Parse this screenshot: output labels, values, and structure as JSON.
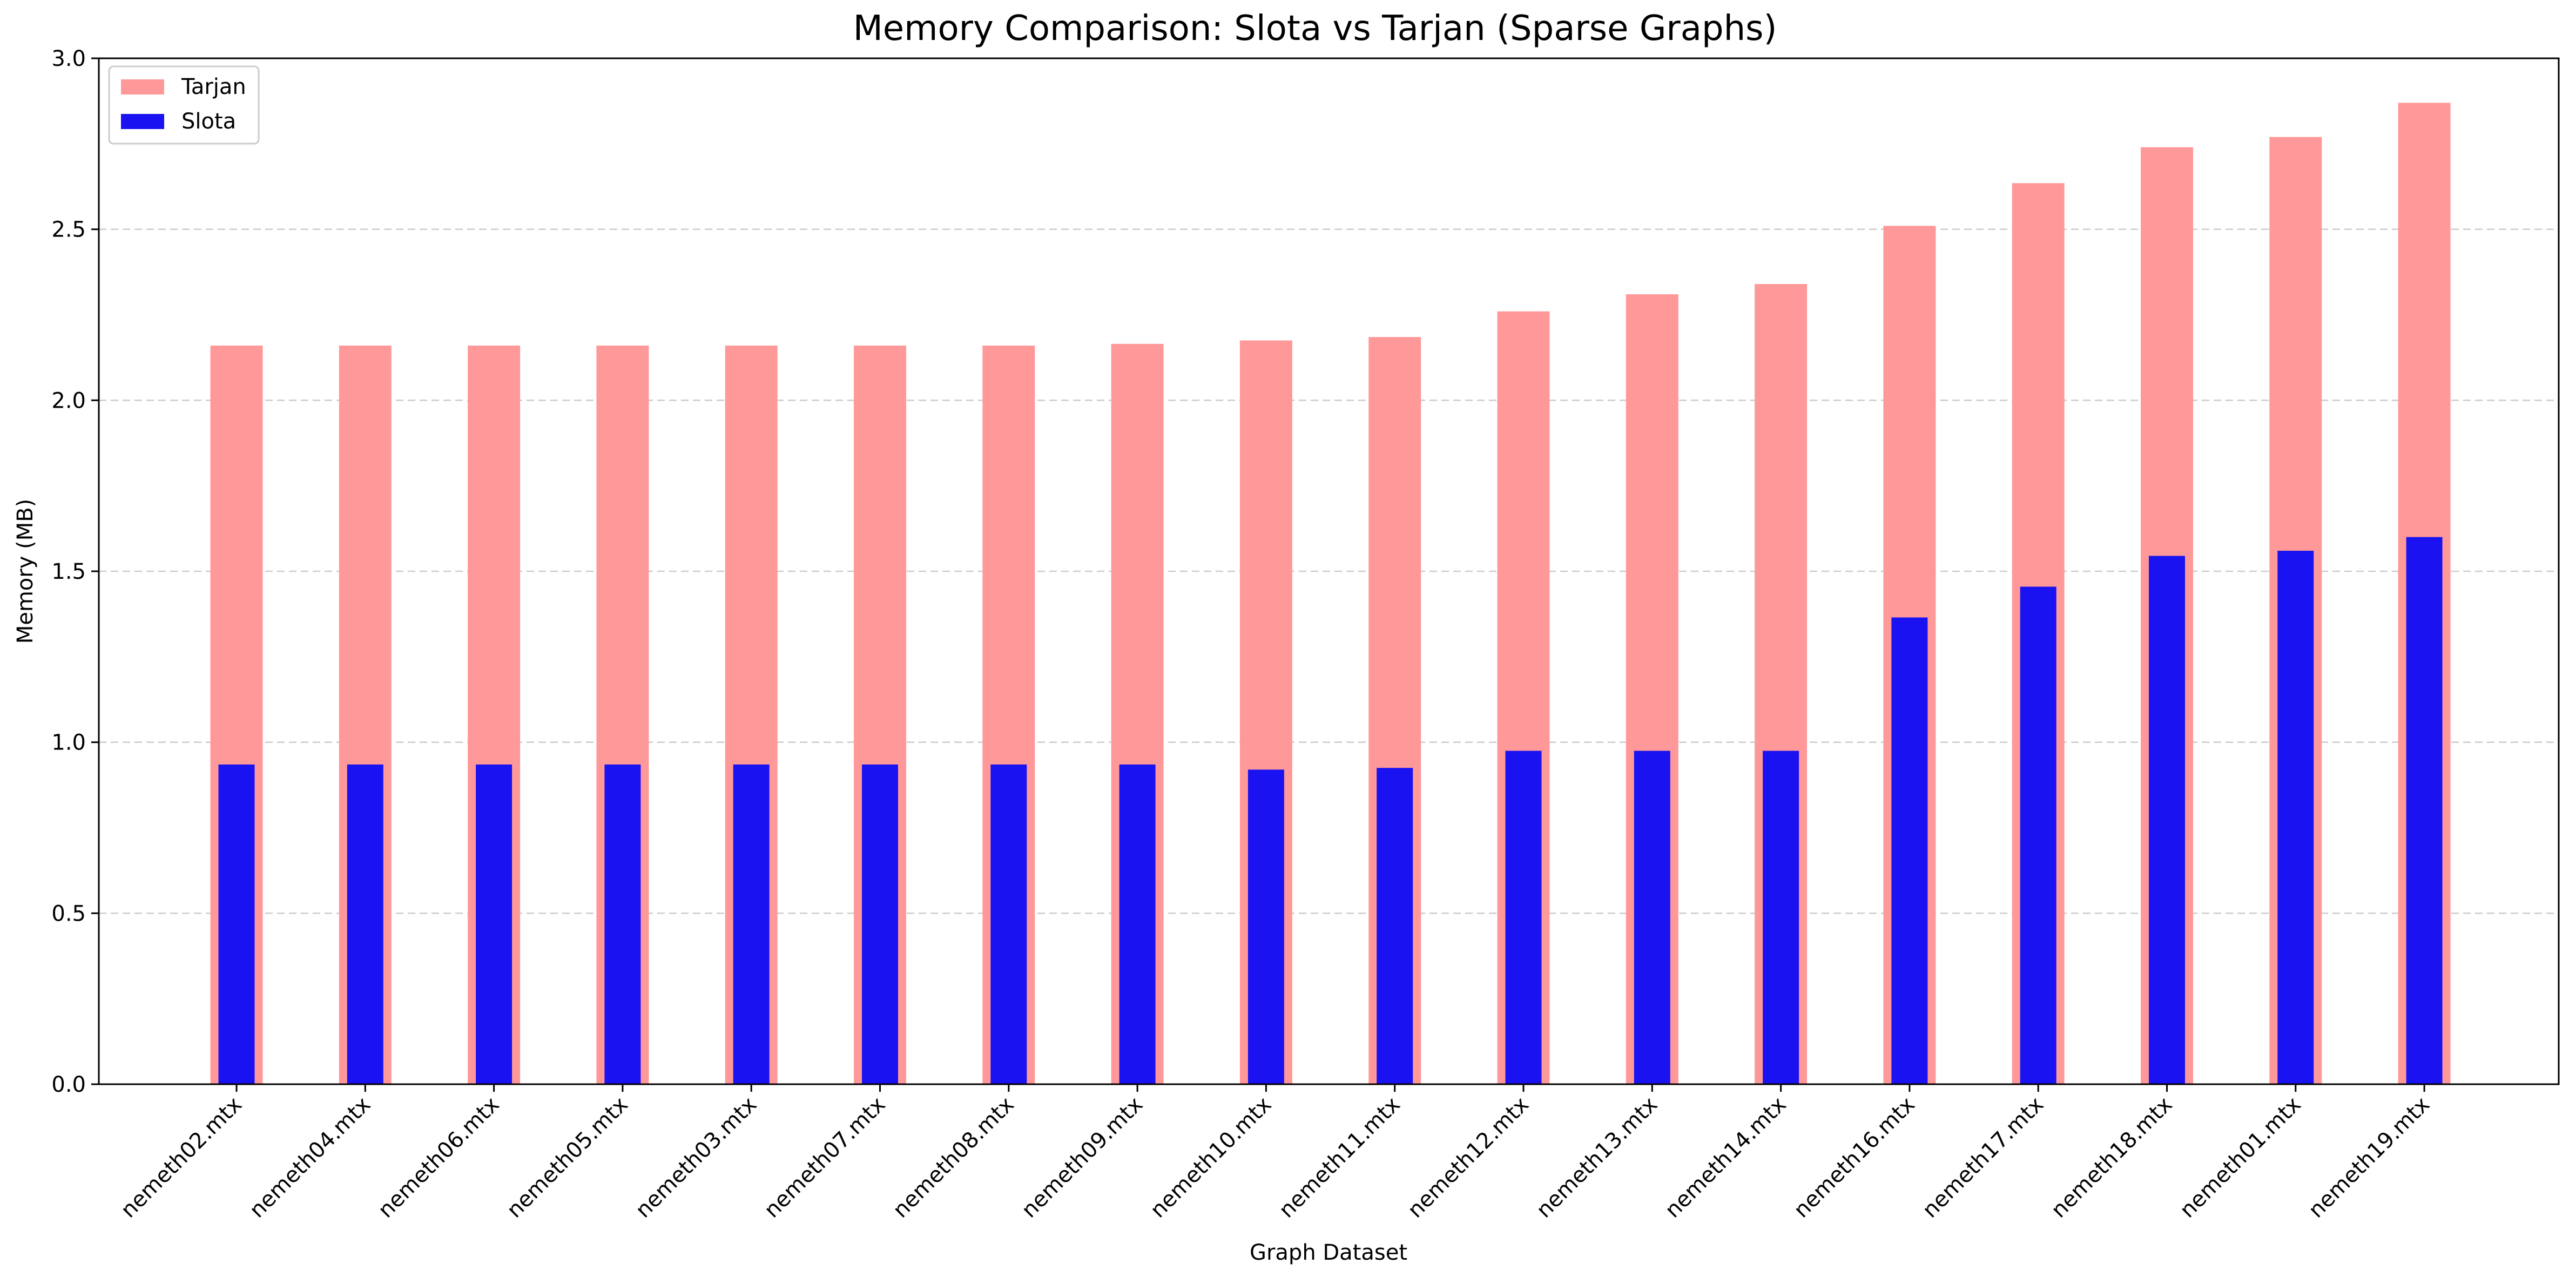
{
  "chart_data": {
    "type": "bar",
    "title": "Memory Comparison: Slota vs Tarjan (Sparse Graphs)",
    "xlabel": "Graph Dataset",
    "ylabel": "Memory (MB)",
    "ylim": [
      0,
      3.0
    ],
    "yticks": [
      0.0,
      0.5,
      1.0,
      1.5,
      2.0,
      2.5,
      3.0
    ],
    "ytick_labels": [
      "0.0",
      "0.5",
      "1.0",
      "1.5",
      "2.0",
      "2.5",
      "3.0"
    ],
    "grid": "y-dashed",
    "legend_position": "top-left",
    "categories": [
      "nemeth02.mtx",
      "nemeth04.mtx",
      "nemeth06.mtx",
      "nemeth05.mtx",
      "nemeth03.mtx",
      "nemeth07.mtx",
      "nemeth08.mtx",
      "nemeth09.mtx",
      "nemeth10.mtx",
      "nemeth11.mtx",
      "nemeth12.mtx",
      "nemeth13.mtx",
      "nemeth14.mtx",
      "nemeth16.mtx",
      "nemeth17.mtx",
      "nemeth18.mtx",
      "nemeth01.mtx",
      "nemeth19.mtx"
    ],
    "series": [
      {
        "name": "Tarjan",
        "color": "#ff9999",
        "values": [
          2.16,
          2.16,
          2.16,
          2.16,
          2.16,
          2.16,
          2.16,
          2.165,
          2.175,
          2.185,
          2.26,
          2.31,
          2.34,
          2.51,
          2.635,
          2.74,
          2.77,
          2.87
        ]
      },
      {
        "name": "Slota",
        "color": "#1a12f0",
        "values": [
          0.935,
          0.935,
          0.935,
          0.935,
          0.935,
          0.935,
          0.935,
          0.935,
          0.92,
          0.925,
          0.975,
          0.975,
          0.975,
          1.365,
          1.455,
          1.545,
          1.56,
          1.6
        ]
      }
    ]
  }
}
